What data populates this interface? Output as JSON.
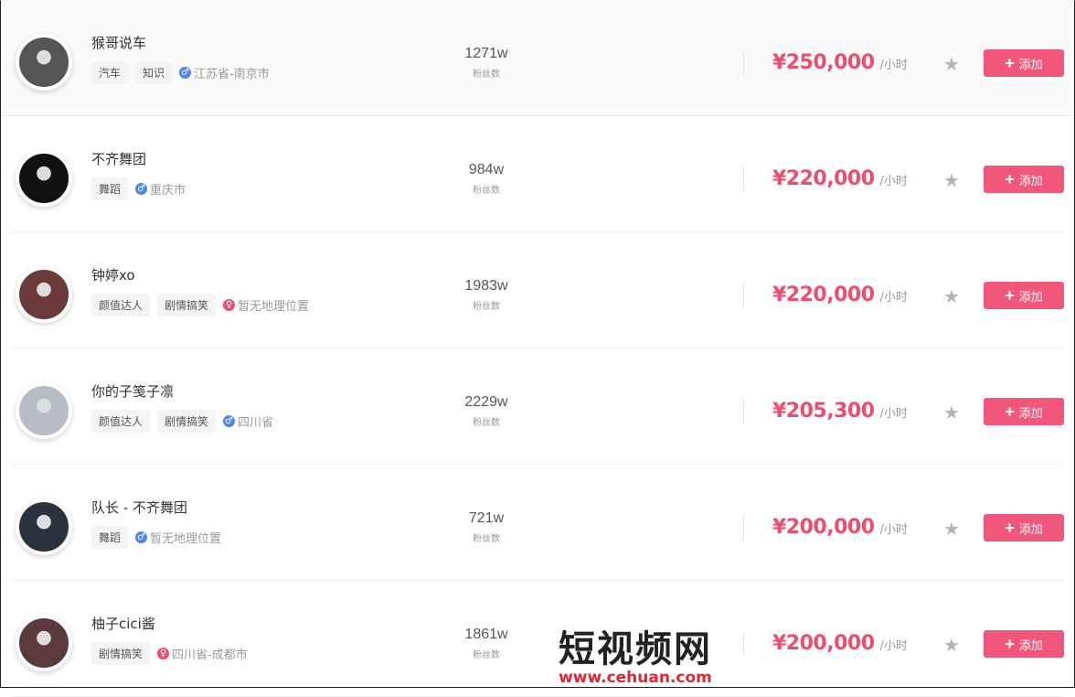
{
  "fans_label": "粉丝数",
  "price_unit": "/小时",
  "add_label": "添加",
  "colors": {
    "accent": "#f0577a",
    "price": "#ee4d6e",
    "male": "#4a86e8",
    "female": "#ee4d6e"
  },
  "items": [
    {
      "name": "猴哥说车",
      "tags": [
        "汽车",
        "知识"
      ],
      "gender": "male",
      "location": "江苏省-南京市",
      "fans": "1271w",
      "price": "¥250,000",
      "avatar_color": "#555"
    },
    {
      "name": "不齐舞团",
      "tags": [
        "舞蹈"
      ],
      "gender": "male",
      "location": "重庆市",
      "fans": "984w",
      "price": "¥220,000",
      "avatar_color": "#111"
    },
    {
      "name": "钟婷xo",
      "tags": [
        "颜值达人",
        "剧情搞笑"
      ],
      "gender": "female",
      "location": "暂无地理位置",
      "fans": "1983w",
      "price": "¥220,000",
      "avatar_color": "#6b3a3a"
    },
    {
      "name": "你的子笺子凛",
      "tags": [
        "颜值达人",
        "剧情搞笑"
      ],
      "gender": "male",
      "location": "四川省",
      "fans": "2229w",
      "price": "¥205,300",
      "avatar_color": "#b8bcc6"
    },
    {
      "name": "队长 - 不齐舞团",
      "tags": [
        "舞蹈"
      ],
      "gender": "male",
      "location": "暂无地理位置",
      "fans": "721w",
      "price": "¥200,000",
      "avatar_color": "#2a3240"
    },
    {
      "name": "柚子cici酱",
      "tags": [
        "剧情搞笑"
      ],
      "gender": "female",
      "location": "四川省-成都市",
      "fans": "1861w",
      "price": "¥200,000",
      "avatar_color": "#5a3a3a"
    }
  ],
  "watermark": {
    "title": "短视频网",
    "url": "www.cehuan.com"
  }
}
